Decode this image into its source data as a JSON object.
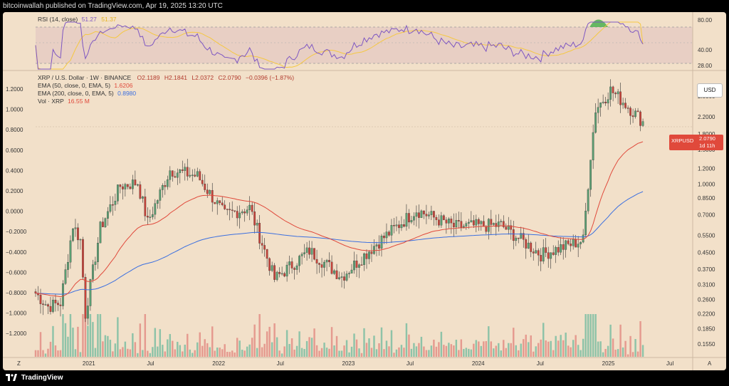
{
  "header": {
    "attribution": "bitcoinwallah published on TradingView.com, Apr 19, 2025 13:20 UTC"
  },
  "footer": {
    "brand": "TradingView"
  },
  "rsi_panel": {
    "label": "RSI (14, close)",
    "rsi_value": "51.27",
    "ma_value": "51.37",
    "ticks": [
      "80.00",
      "40.00",
      "28.00"
    ],
    "colors": {
      "rsi": "#7e57c2",
      "ma": "#f5c842",
      "band": "#e8cfc4",
      "overbought": "#4caf50"
    }
  },
  "main_panel": {
    "symbol_line": {
      "name": "XRP / U.S. Dollar · 1W · BINANCE",
      "o": "O2.1189",
      "h": "H2.1841",
      "l": "L2.0372",
      "c": "C2.0790",
      "change": "−0.0396 (−1.87%)"
    },
    "ema50": {
      "label": "EMA (50, close, 0, EMA, 5)",
      "value": "1.6206",
      "color": "#e0493b"
    },
    "ema200": {
      "label": "EMA (200, close, 0, EMA, 5)",
      "value": "0.8980",
      "color": "#3b6fe0"
    },
    "vol": {
      "label": "Vol · XRP",
      "value": "16.55 M"
    },
    "currency": "USD",
    "price_tag": {
      "symbol": "XRPUSD",
      "price": "2.0790",
      "countdown": "1d 11h"
    },
    "left_ticks": [
      "1.2000",
      "1.0000",
      "0.8000",
      "0.6000",
      "0.4000",
      "0.2000",
      "0.0000",
      "−0.2000",
      "−0.4000",
      "−0.6000",
      "−0.8000",
      "−1.0000",
      "−1.2000"
    ],
    "right_ticks": [
      "2.8000",
      "2.2000",
      "1.8000",
      "1.5000",
      "1.2000",
      "1.0000",
      "0.8500",
      "0.7000",
      "0.5500",
      "0.4500",
      "0.3700",
      "0.3100",
      "0.2600",
      "0.2200",
      "0.1850",
      "0.1550"
    ],
    "time_ticks": [
      "Z",
      "2021",
      "Jul",
      "2022",
      "Jul",
      "2023",
      "Jul",
      "2024",
      "Jul",
      "2025",
      "Jul",
      "A"
    ],
    "colors": {
      "up": "#5a9e72",
      "down": "#c8433a",
      "vol_up": "#8ec3a8",
      "vol_down": "#e59a8f"
    }
  },
  "chart_data": {
    "type": "candlestick",
    "title": "XRP / U.S. Dollar · 1W · BINANCE",
    "y_scale": "log",
    "y_range": [
      0.14,
      3.3
    ],
    "x_range": [
      "2020-08-10",
      "2025-09-01"
    ],
    "approx_close": [
      [
        "2020-08-10",
        0.28
      ],
      [
        "2020-09-14",
        0.24
      ],
      [
        "2020-10-19",
        0.25
      ],
      [
        "2020-11-23",
        0.62
      ],
      [
        "2020-12-14",
        0.52
      ],
      [
        "2020-12-28",
        0.22
      ],
      [
        "2021-02-08",
        0.6
      ],
      [
        "2021-04-05",
        0.98
      ],
      [
        "2021-05-24",
        1.02
      ],
      [
        "2021-06-21",
        0.64
      ],
      [
        "2021-08-23",
        1.18
      ],
      [
        "2021-11-08",
        1.1
      ],
      [
        "2022-01-24",
        0.7
      ],
      [
        "2022-04-04",
        0.76
      ],
      [
        "2022-06-13",
        0.33
      ],
      [
        "2022-09-19",
        0.46
      ],
      [
        "2022-12-19",
        0.34
      ],
      [
        "2023-03-27",
        0.5
      ],
      [
        "2023-07-17",
        0.74
      ],
      [
        "2023-10-30",
        0.61
      ],
      [
        "2024-03-11",
        0.62
      ],
      [
        "2024-07-01",
        0.44
      ],
      [
        "2024-10-28",
        0.52
      ],
      [
        "2024-11-18",
        1.4
      ],
      [
        "2024-12-02",
        2.4
      ],
      [
        "2025-01-13",
        3.0
      ],
      [
        "2025-02-24",
        2.55
      ],
      [
        "2025-04-14",
        2.079
      ]
    ],
    "ema50_last": 1.6206,
    "ema200_last": 0.898,
    "rsi_last": 51.27,
    "rsi_ma_last": 51.37
  }
}
